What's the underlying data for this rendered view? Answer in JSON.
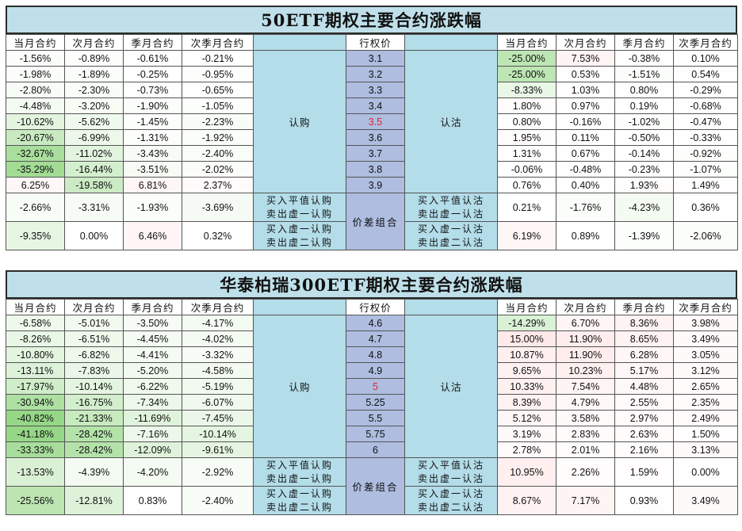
{
  "panels": [
    {
      "title": "50ETF期权主要合约涨跌幅",
      "headers": [
        "当月合约",
        "次月合约",
        "季月合约",
        "次季月合约",
        "行权价",
        "当月合约",
        "次月合约",
        "季月合约",
        "次季月合约"
      ],
      "call_label": "认购",
      "put_label": "认沽",
      "rows": [
        {
          "calls": [
            "-1.56%",
            "-0.89%",
            "-0.61%",
            "-0.21%"
          ],
          "strike": "3.1",
          "puts": [
            "-25.00%",
            "7.53%",
            "-0.38%",
            "0.10%"
          ]
        },
        {
          "calls": [
            "-1.98%",
            "-1.89%",
            "-0.25%",
            "-0.95%"
          ],
          "strike": "3.2",
          "puts": [
            "-25.00%",
            "0.53%",
            "-1.51%",
            "0.54%"
          ]
        },
        {
          "calls": [
            "-2.80%",
            "-2.30%",
            "-0.73%",
            "-0.65%"
          ],
          "strike": "3.3",
          "puts": [
            "-8.33%",
            "1.03%",
            "0.80%",
            "-0.29%"
          ]
        },
        {
          "calls": [
            "-4.48%",
            "-3.20%",
            "-1.90%",
            "-1.05%"
          ],
          "strike": "3.4",
          "puts": [
            "1.80%",
            "0.97%",
            "0.19%",
            "-0.68%"
          ]
        },
        {
          "calls": [
            "-10.62%",
            "-5.62%",
            "-1.45%",
            "-2.23%"
          ],
          "strike": "3.5",
          "puts": [
            "0.80%",
            "-0.16%",
            "-1.02%",
            "-0.47%"
          ]
        },
        {
          "calls": [
            "-20.67%",
            "-6.99%",
            "-1.31%",
            "-1.92%"
          ],
          "strike": "3.6",
          "puts": [
            "1.95%",
            "0.11%",
            "-0.50%",
            "-0.33%"
          ]
        },
        {
          "calls": [
            "-32.67%",
            "-11.02%",
            "-3.43%",
            "-2.40%"
          ],
          "strike": "3.7",
          "puts": [
            "1.31%",
            "0.67%",
            "-0.14%",
            "-0.92%"
          ]
        },
        {
          "calls": [
            "-35.29%",
            "-16.44%",
            "-3.51%",
            "-2.02%"
          ],
          "strike": "3.8",
          "puts": [
            "-0.06%",
            "-0.48%",
            "-0.23%",
            "-1.07%"
          ]
        },
        {
          "calls": [
            "6.25%",
            "-19.58%",
            "6.81%",
            "2.37%"
          ],
          "strike": "3.9",
          "puts": [
            "0.76%",
            "0.40%",
            "1.93%",
            "1.49%"
          ]
        }
      ],
      "spread_label": "价差组合",
      "spreads": [
        {
          "calls": [
            "-2.66%",
            "-3.31%",
            "-1.93%",
            "-3.69%"
          ],
          "call_desc": [
            "买入平值认购",
            "卖出虚一认购"
          ],
          "put_desc": [
            "买入平值认沽",
            "卖出虚一认沽"
          ],
          "puts": [
            "0.21%",
            "-1.76%",
            "-4.23%",
            "0.36%"
          ]
        },
        {
          "calls": [
            "-9.35%",
            "0.00%",
            "6.46%",
            "0.32%"
          ],
          "call_desc": [
            "买入虚一认购",
            "卖出虚二认购"
          ],
          "put_desc": [
            "买入虚一认沽",
            "卖出虚二认沽"
          ],
          "puts": [
            "6.19%",
            "0.89%",
            "-1.39%",
            "-2.06%"
          ]
        }
      ]
    },
    {
      "title": "华泰柏瑞300ETF期权主要合约涨跌幅",
      "headers": [
        "当月合约",
        "次月合约",
        "季月合约",
        "次季月合约",
        "行权价",
        "当月合约",
        "次月合约",
        "季月合约",
        "次季月合约"
      ],
      "call_label": "认购",
      "put_label": "认沽",
      "rows": [
        {
          "calls": [
            "-6.58%",
            "-5.01%",
            "-3.50%",
            "-4.17%"
          ],
          "strike": "4.6",
          "puts": [
            "-14.29%",
            "6.70%",
            "8.36%",
            "3.98%"
          ]
        },
        {
          "calls": [
            "-8.26%",
            "-6.51%",
            "-4.45%",
            "-4.02%"
          ],
          "strike": "4.7",
          "puts": [
            "15.00%",
            "11.90%",
            "8.65%",
            "3.49%"
          ]
        },
        {
          "calls": [
            "-10.80%",
            "-6.82%",
            "-4.41%",
            "-3.32%"
          ],
          "strike": "4.8",
          "puts": [
            "10.87%",
            "11.90%",
            "6.28%",
            "3.05%"
          ]
        },
        {
          "calls": [
            "-13.11%",
            "-7.83%",
            "-5.20%",
            "-4.58%"
          ],
          "strike": "4.9",
          "puts": [
            "9.65%",
            "10.23%",
            "5.17%",
            "3.12%"
          ]
        },
        {
          "calls": [
            "-17.97%",
            "-10.14%",
            "-6.22%",
            "-5.19%"
          ],
          "strike": "5",
          "puts": [
            "10.33%",
            "7.54%",
            "4.48%",
            "2.65%"
          ]
        },
        {
          "calls": [
            "-30.94%",
            "-16.75%",
            "-7.34%",
            "-6.07%"
          ],
          "strike": "5.25",
          "puts": [
            "8.39%",
            "4.79%",
            "2.55%",
            "2.35%"
          ]
        },
        {
          "calls": [
            "-40.82%",
            "-21.33%",
            "-11.69%",
            "-7.45%"
          ],
          "strike": "5.5",
          "puts": [
            "5.12%",
            "3.58%",
            "2.97%",
            "2.49%"
          ]
        },
        {
          "calls": [
            "-41.18%",
            "-28.42%",
            "-7.16%",
            "-10.14%"
          ],
          "strike": "5.75",
          "puts": [
            "3.19%",
            "2.83%",
            "2.63%",
            "1.50%"
          ]
        },
        {
          "calls": [
            "-33.33%",
            "-28.42%",
            "-12.09%",
            "-9.61%"
          ],
          "strike": "6",
          "puts": [
            "2.78%",
            "2.01%",
            "2.16%",
            "3.13%"
          ]
        }
      ],
      "spread_label": "价差组合",
      "spreads": [
        {
          "calls": [
            "-13.53%",
            "-4.39%",
            "-4.20%",
            "-2.92%"
          ],
          "call_desc": [
            "买入平值认购",
            "卖出虚一认购"
          ],
          "put_desc": [
            "买入平值认沽",
            "卖出虚一认沽"
          ],
          "puts": [
            "10.95%",
            "2.26%",
            "1.59%",
            "0.00%"
          ]
        },
        {
          "calls": [
            "-25.56%",
            "-12.81%",
            "0.83%",
            "-2.40%"
          ],
          "call_desc": [
            "买入虚一认购",
            "卖出虚二认购"
          ],
          "put_desc": [
            "买入虚一认沽",
            "卖出虚二认沽"
          ],
          "puts": [
            "8.67%",
            "7.17%",
            "0.93%",
            "3.49%"
          ]
        }
      ]
    }
  ],
  "atm_strike_index": 4,
  "colors": {
    "atm_text": "#e8262a",
    "title_bg": "#bfe0ea",
    "label_bg": "#b3dde9",
    "strike_bg": "#aebde0"
  }
}
